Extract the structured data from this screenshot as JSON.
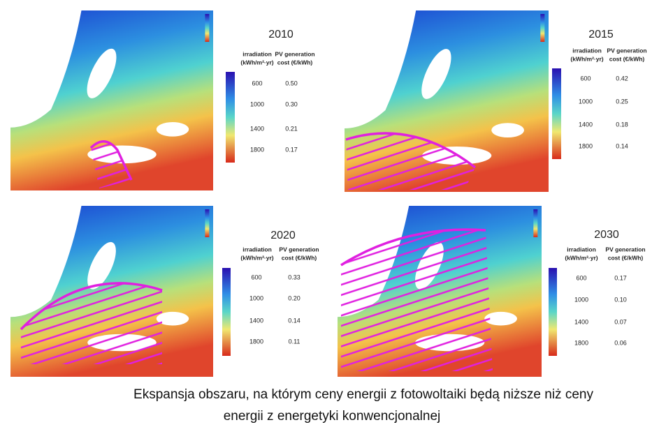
{
  "panels": [
    {
      "year": "2010",
      "header": [
        [
          "irradiation",
          "(kWh/m²·yr)"
        ],
        [
          "PV generation",
          "cost (€/kWh)"
        ]
      ],
      "rows": [
        [
          "600",
          "0.50"
        ],
        [
          "1000",
          "0.30"
        ],
        [
          "1400",
          "0.21"
        ],
        [
          "1800",
          "0.17"
        ]
      ]
    },
    {
      "year": "2015",
      "header": [
        [
          "irradiation",
          "(kWh/m²·yr)"
        ],
        [
          "PV generation",
          "cost (€/kWh)"
        ]
      ],
      "rows": [
        [
          "600",
          "0.42"
        ],
        [
          "1000",
          "0.25"
        ],
        [
          "1400",
          "0.18"
        ],
        [
          "1800",
          "0.14"
        ]
      ]
    },
    {
      "year": "2020",
      "header": [
        [
          "irradiation",
          "(kWh/m²·yr)"
        ],
        [
          "PV generation",
          "cost (€/kWh)"
        ]
      ],
      "rows": [
        [
          "600",
          "0.33"
        ],
        [
          "1000",
          "0.20"
        ],
        [
          "1400",
          "0.14"
        ],
        [
          "1800",
          "0.11"
        ]
      ]
    },
    {
      "year": "2030",
      "header": [
        [
          "irradiation",
          "(kWh/m²·yr)"
        ],
        [
          "PV generation",
          "cost (€/kWh)"
        ]
      ],
      "rows": [
        [
          "600",
          "0.17"
        ],
        [
          "1000",
          "0.10"
        ],
        [
          "1400",
          "0.07"
        ],
        [
          "1800",
          "0.06"
        ]
      ]
    }
  ],
  "caption": [
    "Ekspansja obszaru, na którym ceny energii z fotowoltaiki będą niższe niż ceny",
    "energii z energetyki konwencjonalnej"
  ]
}
